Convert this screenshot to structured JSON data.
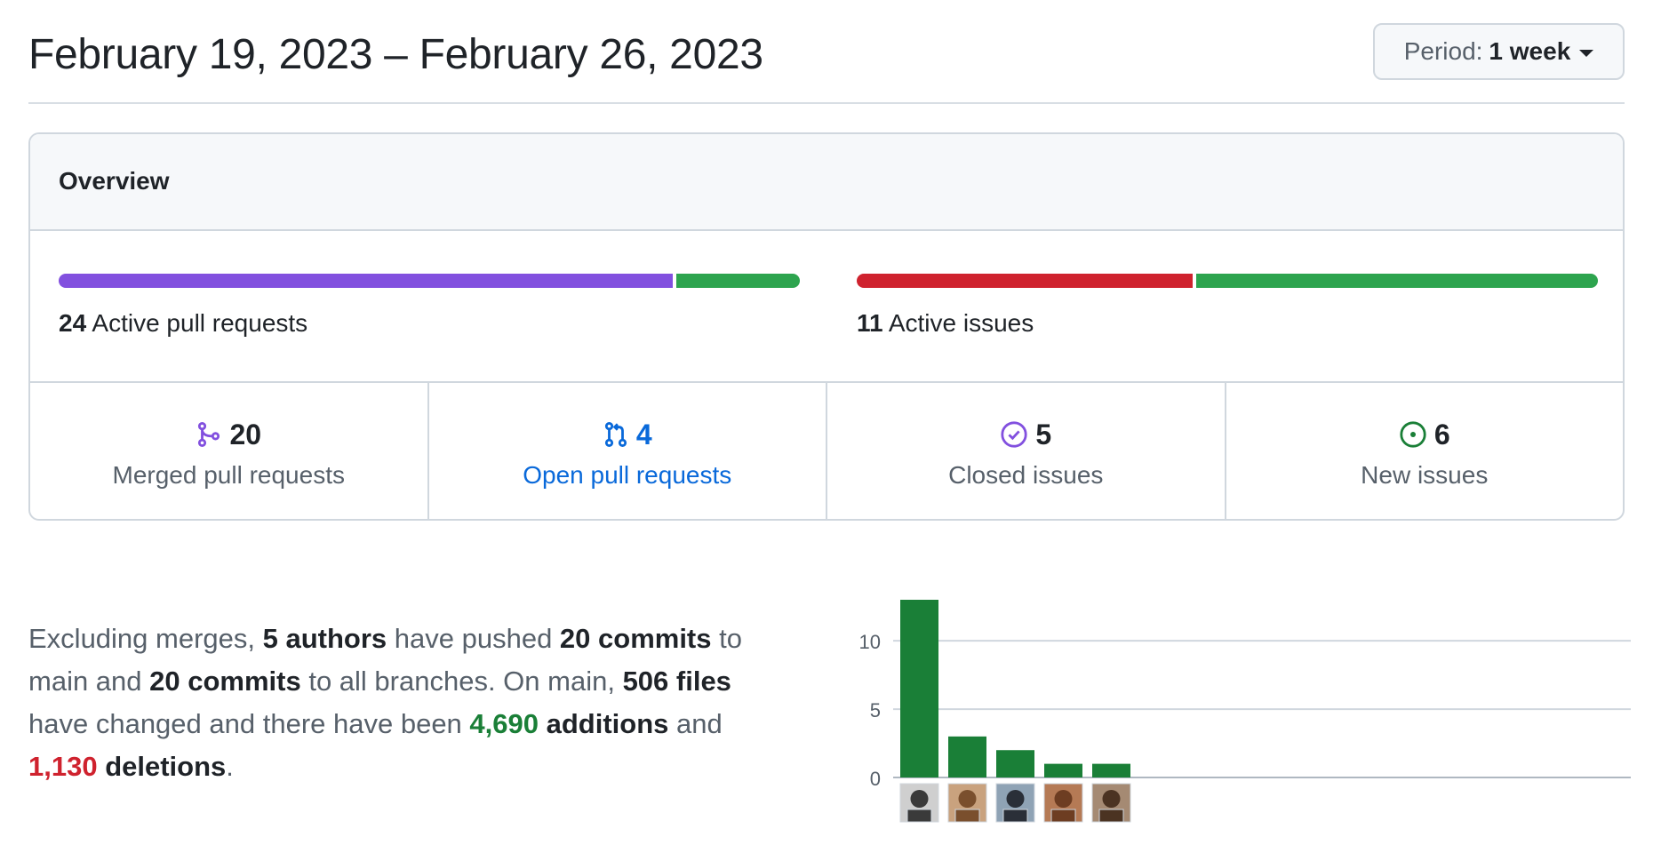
{
  "header": {
    "date_range": "February 19, 2023 – February 26, 2023",
    "period_label": "Period:",
    "period_value": "1 week"
  },
  "overview": {
    "title": "Overview",
    "pull_requests": {
      "count": "24",
      "label": "Active pull requests",
      "merged_fraction": 0.833,
      "open_fraction": 0.167,
      "merged_color": "#8250df",
      "open_color": "#2da44e"
    },
    "issues": {
      "count": "11",
      "label": "Active issues",
      "closed_fraction": 0.455,
      "new_fraction": 0.545,
      "closed_color": "#cf222e",
      "new_color": "#2da44e"
    },
    "stats": [
      {
        "icon": "git-merge-icon",
        "value": "20",
        "label": "Merged pull requests",
        "color": "#8250df"
      },
      {
        "icon": "git-pull-request-icon",
        "value": "4",
        "label": "Open pull requests",
        "color": "#0969da"
      },
      {
        "icon": "issue-closed-icon",
        "value": "5",
        "label": "Closed issues",
        "color": "#8250df"
      },
      {
        "icon": "issue-opened-icon",
        "value": "6",
        "label": "New issues",
        "color": "#1a7f37"
      }
    ]
  },
  "summary": {
    "t1": "Excluding merges, ",
    "authors": "5 authors",
    "t2": " have pushed ",
    "commits_main": "20 commits",
    "t3": " to main and ",
    "commits_all": "20 commits",
    "t4": " to all branches. On main, ",
    "files": "506 files",
    "t5": " have changed and there have been ",
    "additions_num": "4,690",
    "additions_word": " additions",
    "t6": " and ",
    "deletions_num": "1,130",
    "deletions_word": " deletions",
    "t7": "."
  },
  "chart_data": {
    "type": "bar",
    "categories": [
      "",
      "",
      "",
      "",
      ""
    ],
    "values": [
      13,
      3,
      2,
      1,
      1
    ],
    "ylim": [
      0,
      13
    ],
    "yticks": [
      "0",
      "5",
      "10"
    ],
    "grid": true,
    "bar_color": "#1a7f37",
    "avatars": [
      "avatar-1",
      "avatar-2",
      "avatar-3",
      "avatar-4",
      "avatar-5"
    ]
  }
}
